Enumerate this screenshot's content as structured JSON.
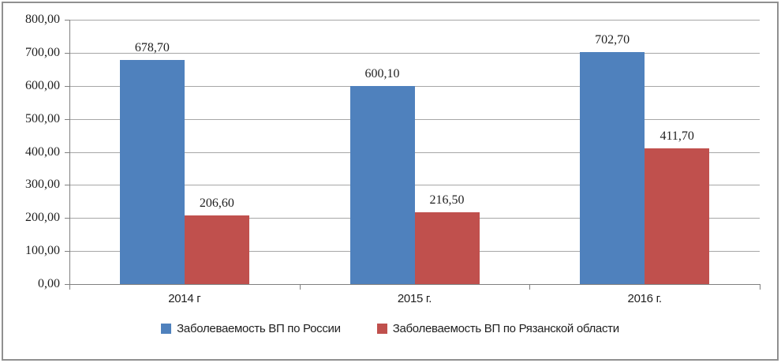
{
  "window": {
    "background": "#FFFFFF",
    "frame_border_color": "#909090"
  },
  "chart_data": {
    "type": "bar",
    "title": "",
    "xlabel": "",
    "ylabel": "",
    "categories": [
      "2014 г",
      "2015 г.",
      "2016 г."
    ],
    "series": [
      {
        "name": "Заболеваемость ВП по России",
        "color": "#4F81BD",
        "values": [
          678.7,
          600.1,
          702.7
        ],
        "data_labels": [
          "678,70",
          "600,10",
          "702,70"
        ]
      },
      {
        "name": "Заболеваемость ВП по Рязанской области",
        "color": "#C0504D",
        "values": [
          206.6,
          216.5,
          411.7
        ],
        "data_labels": [
          "206,60",
          "216,50",
          "411,70"
        ]
      }
    ],
    "ylim": [
      0,
      800
    ],
    "ytick_step": 100,
    "ytick_labels": [
      "800,00",
      "700,00",
      "600,00",
      "500,00",
      "400,00",
      "300,00",
      "200,00",
      "100,00",
      "0,00"
    ],
    "grid": true,
    "legend_position": "bottom",
    "colors": {
      "gridline": "#A6A6A6",
      "axis": "#808080",
      "text": "#1F1F1F"
    }
  }
}
